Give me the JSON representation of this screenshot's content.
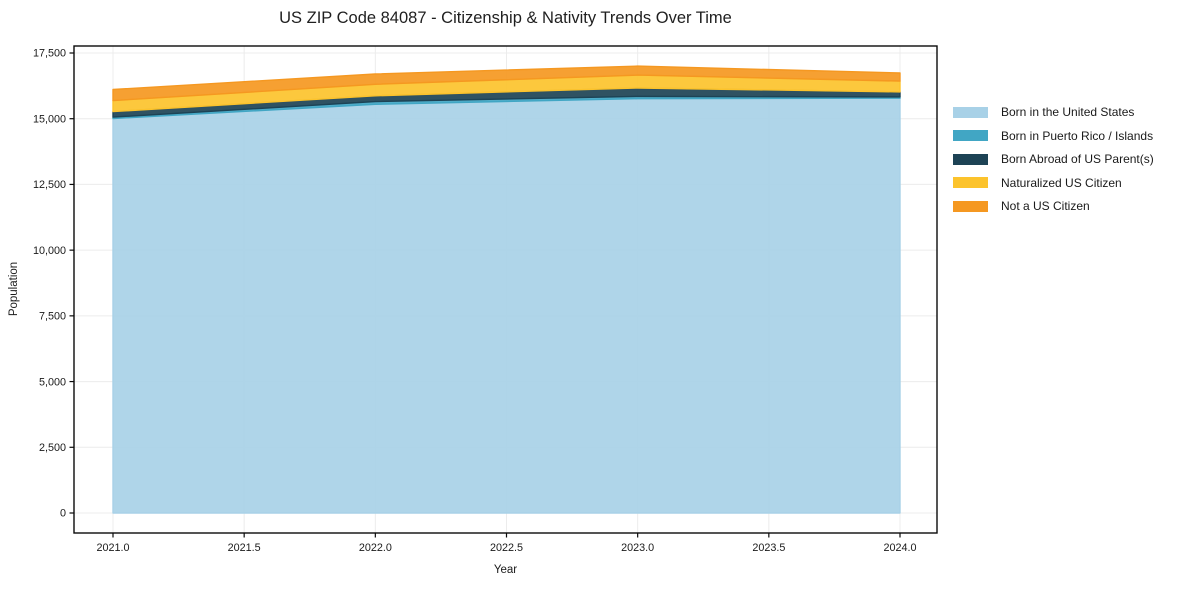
{
  "chart_data": {
    "type": "area",
    "stacked": true,
    "title": "US ZIP Code 84087 - Citizenship & Nativity Trends Over Time",
    "xlabel": "Year",
    "ylabel": "Population",
    "x": [
      2021,
      2022,
      2023,
      2024
    ],
    "series": [
      {
        "name": "Born in the United States",
        "color": "#a8d1e7",
        "values": [
          15010,
          15550,
          15760,
          15780
        ]
      },
      {
        "name": "Born in Puerto Rico / Islands",
        "color": "#41a6c4",
        "values": [
          50,
          100,
          90,
          50
        ]
      },
      {
        "name": "Born Abroad of US Parent(s)",
        "color": "#1d4355",
        "values": [
          210,
          220,
          320,
          190
        ]
      },
      {
        "name": "Naturalized US Citizen",
        "color": "#fcc32c",
        "values": [
          420,
          440,
          490,
          410
        ]
      },
      {
        "name": "Not a US Citizen",
        "color": "#f59821",
        "values": [
          420,
          390,
          340,
          310
        ]
      }
    ],
    "x_ticks": [
      "2021.0",
      "2021.5",
      "2022.0",
      "2022.5",
      "2023.0",
      "2023.5",
      "2024.0"
    ],
    "x_tick_values": [
      2021,
      2021.5,
      2022,
      2022.5,
      2023,
      2023.5,
      2024
    ],
    "y_ticks": [
      "0",
      "2,500",
      "5,000",
      "7,500",
      "10,000",
      "12,500",
      "15,000",
      "17,500"
    ],
    "y_tick_values": [
      0,
      2500,
      5000,
      7500,
      10000,
      12500,
      15000,
      17500
    ],
    "xlim": [
      2020.85,
      2024.14
    ],
    "ylim": [
      -760,
      17765
    ],
    "grid": true,
    "legend_position": "right-outside"
  },
  "legend": {
    "items": [
      {
        "label": "Born in the United States",
        "color": "#a8d1e7"
      },
      {
        "label": "Born in Puerto Rico / Islands",
        "color": "#41a6c4"
      },
      {
        "label": "Born Abroad of US Parent(s)",
        "color": "#1d4355"
      },
      {
        "label": "Naturalized US Citizen",
        "color": "#fcc32c"
      },
      {
        "label": "Not a US Citizen",
        "color": "#f59821"
      }
    ]
  },
  "style_colors": {
    "grid": "#ececec",
    "spine": "#0a0a0a",
    "text": "#1a1a1a"
  }
}
